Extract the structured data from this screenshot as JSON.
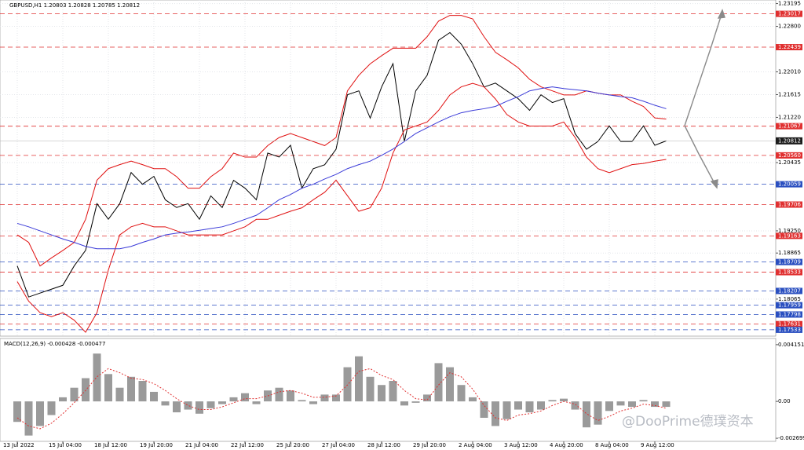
{
  "header": "GBPUSD,H1  1.20803 1.20828 1.20785 1.20812",
  "watermark": "@DooPrime德璞资本",
  "chart_data": [
    {
      "type": "line",
      "categories": [
        "13 Jul 2022",
        null,
        null,
        null,
        "15 Jul 04:00",
        null,
        null,
        null,
        "18 Jul 12:00",
        null,
        null,
        null,
        "19 Jul 20:00",
        null,
        null,
        null,
        "21 Jul 04:00",
        null,
        null,
        null,
        "22 Jul 12:00",
        null,
        null,
        null,
        "25 Jul 20:00",
        null,
        null,
        null,
        "27 Jul 04:00",
        null,
        null,
        null,
        "28 Jul 12:00",
        null,
        null,
        null,
        "29 Jul 20:00",
        null,
        null,
        null,
        "2 Aug 04:00",
        null,
        null,
        null,
        "3 Aug 12:00",
        null,
        null,
        null,
        "4 Aug 20:00",
        null,
        null,
        null,
        "8 Aug 04:00",
        null,
        null,
        null,
        "9 Aug 12:00",
        null
      ],
      "series": [
        {
          "color": "#000000",
          "values": [
            1.18642,
            1.18102,
            1.1817,
            1.18237,
            1.18305,
            1.18642,
            1.18912,
            1.19722,
            1.19452,
            1.19722,
            1.20262,
            1.2006,
            1.20195,
            1.1979,
            1.19655,
            1.19722,
            1.19452,
            1.19857,
            1.19655,
            1.20127,
            1.19992,
            1.1979,
            1.206,
            1.20532,
            1.20735,
            1.19992,
            1.2033,
            1.20397,
            1.20667,
            1.21612,
            1.2168,
            1.21207,
            1.21747,
            1.22152,
            1.20802,
            1.2168,
            1.2195,
            1.22557,
            1.22692,
            1.2249,
            1.22152,
            1.21747,
            1.21815,
            1.2168,
            1.21545,
            1.21342,
            1.21612,
            1.21477,
            1.21545,
            1.20937,
            1.20667,
            1.20802,
            1.21072,
            1.20802,
            1.20802,
            1.21072,
            1.20735,
            1.20812
          ]
        },
        {
          "color": "#e01010",
          "values": [
            1.1918,
            1.1905,
            1.1864,
            1.1878,
            1.1891,
            1.1905,
            1.1945,
            1.2013,
            1.2033,
            1.204,
            1.2046,
            1.204,
            1.2033,
            1.2033,
            1.2019,
            1.1999,
            1.1999,
            1.2019,
            1.2033,
            1.206,
            1.2053,
            1.2053,
            1.2073,
            1.2087,
            1.2094,
            1.2087,
            1.208,
            1.2073,
            1.2087,
            1.2168,
            1.2195,
            1.2215,
            1.2229,
            1.2242,
            1.2242,
            1.2242,
            1.2262,
            1.2289,
            1.2299,
            1.2299,
            1.2293,
            1.2262,
            1.2235,
            1.2222,
            1.2208,
            1.2188,
            1.2175,
            1.2168,
            1.2161,
            1.2161,
            1.2168,
            1.2164,
            1.2161,
            1.2161,
            1.215,
            1.2141,
            1.2121,
            1.2119
          ]
        },
        {
          "color": "#e01010",
          "values": [
            1.1837,
            1.1803,
            1.1783,
            1.1776,
            1.1783,
            1.177,
            1.1749,
            1.1783,
            1.1857,
            1.1918,
            1.1932,
            1.1938,
            1.1932,
            1.1932,
            1.1925,
            1.1918,
            1.1918,
            1.1918,
            1.1918,
            1.1925,
            1.1932,
            1.1945,
            1.1945,
            1.1952,
            1.1959,
            1.1965,
            1.1979,
            1.1992,
            1.2013,
            1.1986,
            1.1959,
            1.1965,
            1.1999,
            1.206,
            1.21,
            1.2107,
            1.2114,
            1.2134,
            1.2161,
            1.2175,
            1.2181,
            1.2175,
            1.2154,
            1.2127,
            1.2114,
            1.2107,
            1.2107,
            1.2107,
            1.2114,
            1.2087,
            1.2053,
            1.2033,
            1.2026,
            1.2033,
            1.204,
            1.2042,
            1.2046,
            1.2049
          ]
        },
        {
          "color": "#3a3ad8",
          "values": [
            1.1938,
            1.1932,
            1.1925,
            1.1918,
            1.1911,
            1.1905,
            1.1898,
            1.1894,
            1.1894,
            1.1894,
            1.1898,
            1.1905,
            1.1911,
            1.1918,
            1.1921,
            1.1923,
            1.1926,
            1.1929,
            1.1932,
            1.1938,
            1.1945,
            1.1952,
            1.1965,
            1.1979,
            1.1988,
            1.1999,
            1.2006,
            1.2015,
            1.2023,
            1.2033,
            1.204,
            1.2046,
            1.2056,
            1.2067,
            1.208,
            1.2094,
            1.2104,
            1.2114,
            1.2123,
            1.213,
            1.2134,
            1.2137,
            1.2141,
            1.215,
            1.2158,
            1.2168,
            1.2172,
            1.2175,
            1.2172,
            1.217,
            1.2168,
            1.2164,
            1.2161,
            1.2158,
            1.2156,
            1.215,
            1.2143,
            1.2137
          ]
        }
      ],
      "ylim": [
        1.1745,
        1.2323
      ],
      "yticks": [
        1.23195,
        {
          "value": 1.228,
          "label": "1.22800"
        },
        {
          "value": 1.2201,
          "label": "1.22010"
        },
        1.21615,
        {
          "value": 1.2122,
          "label": "1.21220"
        },
        1.20435,
        {
          "value": 1.1925,
          "label": "1.19250"
        },
        1.18865,
        1.18065
      ],
      "grid": true,
      "levels": [
        {
          "value": 1.23017,
          "color": "#e03030"
        },
        {
          "value": 1.22439,
          "color": "#e03030"
        },
        {
          "value": 1.21067,
          "color": "#e03030"
        },
        {
          "value": 1.2056,
          "label": "1.20560",
          "color": "#e03030"
        },
        {
          "value": 1.20059,
          "color": "#2a4fc0"
        },
        {
          "value": 1.19706,
          "color": "#e03030"
        },
        {
          "value": 1.19163,
          "color": "#e03030"
        },
        {
          "value": 1.18709,
          "color": "#2a4fc0"
        },
        {
          "value": 1.18533,
          "color": "#e03030"
        },
        {
          "value": 1.18207,
          "color": "#2a4fc0"
        },
        {
          "value": 1.17959,
          "color": "#2a4fc0"
        },
        {
          "value": 1.17798,
          "color": "#2a4fc0"
        },
        {
          "value": 1.17631,
          "color": "#e03030"
        },
        {
          "value": 1.17533,
          "color": "#2a4fc0"
        }
      ],
      "last_price": 1.20812
    },
    {
      "type": "bar",
      "title": "MACD(12,26,9) -0.000428 -0.000477",
      "series": [
        {
          "kind": "bar",
          "color": "#9a9a9a",
          "values": [
            -0.0015,
            -0.0025,
            -0.0018,
            -0.001,
            0.0003,
            0.001,
            0.0017,
            0.0035,
            0.002,
            0.001,
            0.0018,
            0.0015,
            0.0007,
            -0.0003,
            -0.0008,
            -0.0006,
            -0.0009,
            -0.0005,
            -0.0002,
            0.0003,
            0.0006,
            -0.0002,
            0.0008,
            0.001,
            0.0008,
            0.0001,
            -0.0002,
            0.0005,
            0.0005,
            0.0025,
            0.0033,
            0.0018,
            0.0012,
            0.0015,
            -0.0003,
            -0.0001,
            0.0005,
            0.0028,
            0.0025,
            0.0012,
            0.0003,
            -0.0012,
            -0.0018,
            -0.0013,
            -0.0006,
            -0.0008,
            -0.0006,
            0.0001,
            0.0002,
            -0.0006,
            -0.0019,
            -0.0017,
            -0.0007,
            -0.0003,
            -0.0004,
            0.0001,
            -0.0004,
            -0.0004
          ]
        },
        {
          "kind": "line",
          "color": "#e03030",
          "values": [
            -0.0012,
            -0.0018,
            -0.002,
            -0.0016,
            -0.0009,
            -0.0001,
            0.0008,
            0.0018,
            0.0024,
            0.0021,
            0.0017,
            0.0016,
            0.0013,
            0.0008,
            0.0002,
            -0.0003,
            -0.0006,
            -0.0006,
            -0.0004,
            -0.0001,
            0.0002,
            0.0002,
            0.0004,
            0.0007,
            0.0008,
            0.0006,
            0.0003,
            0.0003,
            0.0004,
            0.0012,
            0.0022,
            0.0024,
            0.0019,
            0.0016,
            0.0008,
            0.0002,
            0.0001,
            0.0012,
            0.0021,
            0.0018,
            0.0009,
            -0.0003,
            -0.0012,
            -0.0014,
            -0.001,
            -0.0009,
            -0.0007,
            -0.0003,
            0,
            -0.0002,
            -0.0009,
            -0.0014,
            -0.0011,
            -0.0007,
            -0.0005,
            -0.0002,
            -0.0003,
            -0.0005
          ]
        }
      ],
      "ylim": [
        -0.00281,
        0.00449
      ],
      "yticks": [
        0.004151,
        {
          "value": 0,
          "label": "0.00"
        },
        -0.002699
      ]
    }
  ]
}
